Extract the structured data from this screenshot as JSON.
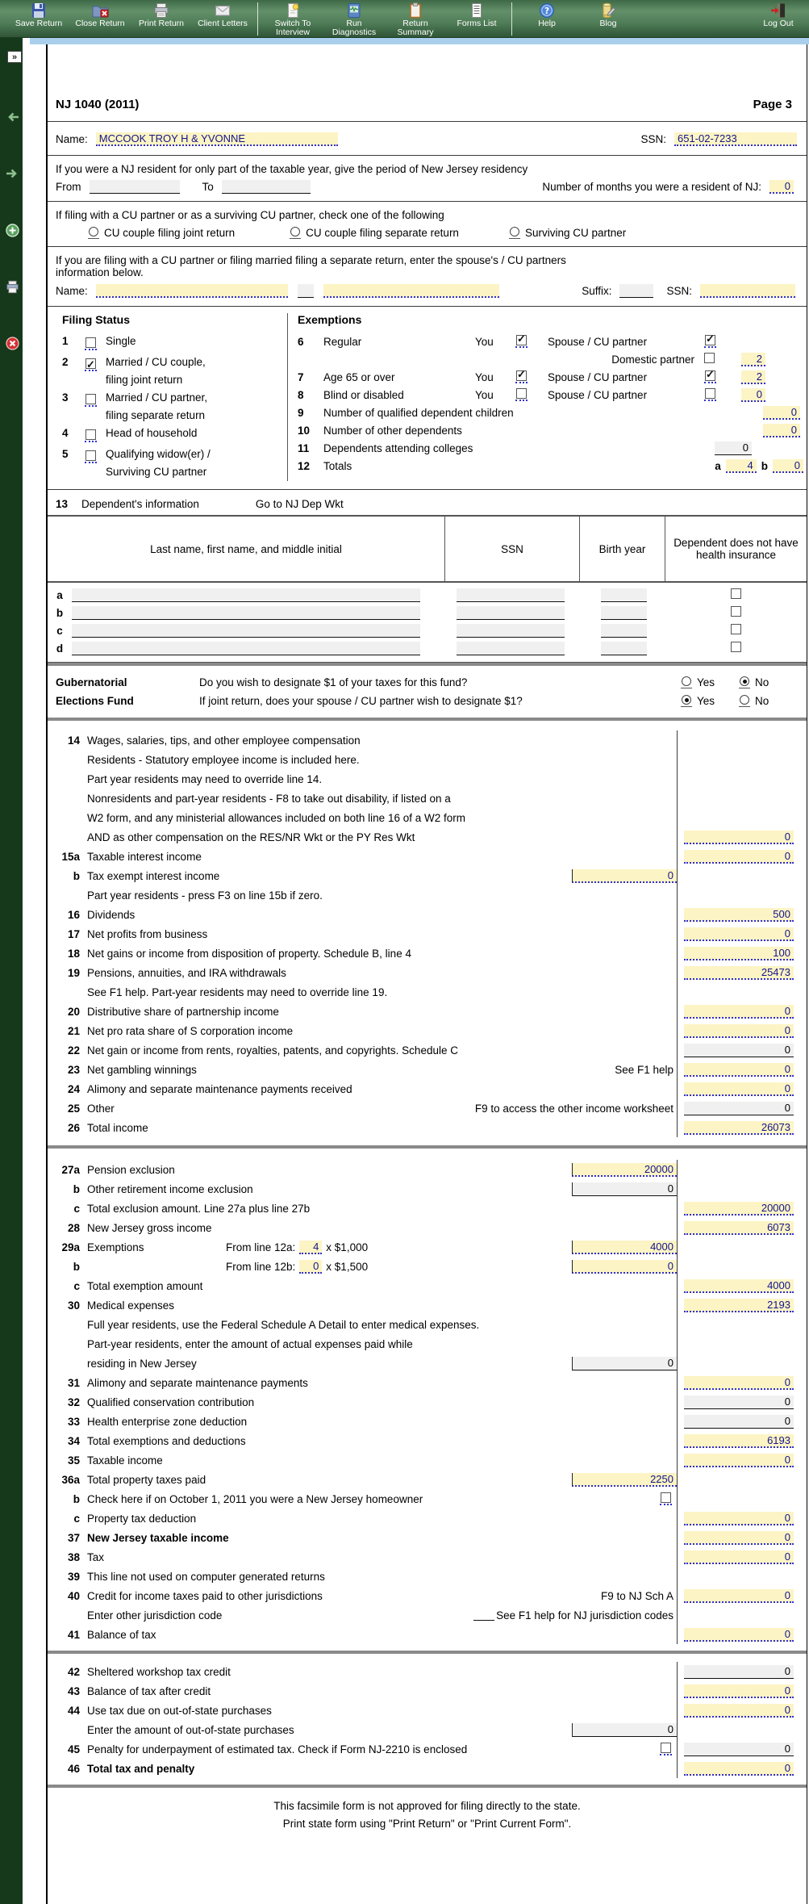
{
  "colors": {
    "toolbar_green": "#4f7d57",
    "sidebar_green": "#16391c",
    "field_yellow": "#fcf4c4",
    "field_gray": "#f0f0f0",
    "underline_blue": "#2f2fd4",
    "value_navy": "#14148c",
    "strip_blue": "#a9cfec"
  },
  "toolbar": {
    "buttons": [
      {
        "label": "Save Return",
        "icon": "save-icon"
      },
      {
        "label": "Close Return",
        "icon": "close-return-icon"
      },
      {
        "label": "Print Return",
        "icon": "print-icon"
      },
      {
        "label": "Client Letters",
        "icon": "envelope-icon"
      },
      {
        "sep": true
      },
      {
        "label": "Switch To Interview",
        "icon": "interview-icon"
      },
      {
        "label": "Run Diagnostics",
        "icon": "diagnostics-icon"
      },
      {
        "label": "Return Summary",
        "icon": "clipboard-icon"
      },
      {
        "label": "Forms List",
        "icon": "forms-list-icon"
      },
      {
        "sep": true
      },
      {
        "label": "Help",
        "icon": "help-icon"
      },
      {
        "label": "Blog",
        "icon": "blog-icon"
      }
    ],
    "logout_label": "Log Out"
  },
  "sidebar": {
    "expand_glyph": "»",
    "icons": [
      "back-arrow-icon",
      "forward-arrow-icon",
      "add-form-icon",
      "print-form-icon",
      "close-form-icon"
    ]
  },
  "header": {
    "title": "NJ 1040 (2011)",
    "page_label": "Page 3"
  },
  "name_row": {
    "name_label": "Name:",
    "name": "MCCOOK TROY H & YVONNE",
    "ssn_label": "SSN:",
    "ssn": "651-02-7233"
  },
  "residency": {
    "text": "If you were a NJ resident for only part of the taxable year,  give the period of New Jersey residency",
    "from_label": "From",
    "to_label": "To",
    "months_label": "Number of months you were a resident of NJ:",
    "months": "0"
  },
  "cu_filing": {
    "text": "If filing with a CU partner or as a surviving CU partner,  check one of the following",
    "selected": "",
    "options": [
      "CU couple filing joint return",
      "CU couple filing separate return",
      "Surviving CU partner"
    ]
  },
  "spouse": {
    "text1": "If you are filing with a CU partner or filing married filing a separate return,  enter the spouse's / CU partners",
    "text2": "information below.",
    "name_label": "Name:",
    "suffix_label": "Suffix:",
    "ssn_label": "SSN:"
  },
  "filing_status": {
    "title": "Filing Status",
    "items": [
      {
        "num": "1",
        "label": "Single",
        "label2": "",
        "checked": false
      },
      {
        "num": "2",
        "label": "Married / CU couple,",
        "label2": "filing joint return",
        "checked": true
      },
      {
        "num": "3",
        "label": "Married / CU partner,",
        "label2": "filing separate return",
        "checked": false
      },
      {
        "num": "4",
        "label": "Head of household",
        "label2": "",
        "checked": false
      },
      {
        "num": "5",
        "label": "Qualifying widow(er) /",
        "label2": "Surviving CU partner",
        "checked": false
      }
    ]
  },
  "exemptions": {
    "title": "Exemptions",
    "row6": {
      "num": "6",
      "label": "Regular",
      "you_label": "You",
      "you_checked": true,
      "spouse_label": "Spouse / CU partner",
      "spouse_checked": true
    },
    "row6b": {
      "label": "Domestic partner",
      "checked": false,
      "value": "2"
    },
    "row7": {
      "num": "7",
      "label": "Age 65 or over",
      "you_label": "You",
      "you_checked": true,
      "spouse_label": "Spouse / CU partner",
      "spouse_checked": true,
      "value": "2"
    },
    "row8": {
      "num": "8",
      "label": "Blind or disabled",
      "you_label": "You",
      "you_checked": false,
      "spouse_label": "Spouse / CU partner",
      "spouse_checked": false,
      "value": "0"
    },
    "row9": {
      "num": "9",
      "label": "Number of qualified dependent children",
      "value": "0"
    },
    "row10": {
      "num": "10",
      "label": "Number of other dependents",
      "value": "0"
    },
    "row11": {
      "num": "11",
      "label": "Dependents attending colleges",
      "value": "0"
    },
    "row12": {
      "num": "12",
      "label": "Totals",
      "a_label": "a",
      "a_value": "4",
      "b_label": "b",
      "b_value": "0"
    }
  },
  "dependents": {
    "line_num": "13",
    "label": "Dependent's information",
    "link": "Go to NJ Dep Wkt",
    "col_name": "Last name,  first name,  and middle initial",
    "col_ssn": "SSN",
    "col_birth": "Birth year",
    "col_health": "Dependent does not have health insurance",
    "rows": [
      "a",
      "b",
      "c",
      "d"
    ]
  },
  "gubernatorial": {
    "title1": "Gubernatorial",
    "title2": "Elections Fund",
    "q1": "Do you wish to designate $1 of your taxes for this fund?",
    "q2": "If joint return,  does your spouse / CU partner wish to designate $1?",
    "yes_label": "Yes",
    "no_label": "No",
    "q1_answer": "No",
    "q2_answer": "Yes"
  },
  "income": {
    "rows": [
      {
        "n": "14",
        "t": "Wages,  salaries,  tips,  and other employee compensation"
      },
      {
        "t": "Residents - Statutory employee income is included here."
      },
      {
        "t": "Part year residents may need to override line 14."
      },
      {
        "t": "Nonresidents and part-year residents - F8 to take out disability,  if listed on a"
      },
      {
        "t": "W2 form,  and any ministerial allowances included on both line 16 of a W2 form"
      },
      {
        "t": "AND as other compensation on the RES/NR Wkt or the PY Res Wkt",
        "rv": "0",
        "rt": "y"
      },
      {
        "n": "15a",
        "t": "Taxable interest income",
        "rv": "0",
        "rt": "y"
      },
      {
        "n": "b",
        "t": "Tax exempt interest income",
        "mv": "0",
        "mt": "y"
      },
      {
        "t": "Part year residents - press F3 on line 15b if zero."
      },
      {
        "n": "16",
        "t": "Dividends",
        "rv": "500",
        "rt": "y"
      },
      {
        "n": "17",
        "t": "Net profits from business",
        "rv": "0",
        "rt": "y"
      },
      {
        "n": "18",
        "t": "Net gains or income from disposition of property.   Schedule B,  line 4",
        "rv": "100",
        "rt": "y"
      },
      {
        "n": "19",
        "t": "Pensions,  annuities,  and IRA withdrawals",
        "rv": "25473",
        "rt": "y"
      },
      {
        "t": "See F1 help.   Part-year residents may need to override line 19."
      },
      {
        "n": "20",
        "t": "Distributive share of partnership income",
        "rv": "0",
        "rt": "y"
      },
      {
        "n": "21",
        "t": "Net pro rata share of S corporation income",
        "rv": "0",
        "rt": "y"
      },
      {
        "n": "22",
        "t": "Net gain or income from rents,  royalties,  patents,  and copyrights.   Schedule C",
        "rv": "0",
        "rt": "g"
      },
      {
        "n": "23",
        "t": "Net gambling winnings",
        "note": "See F1 help",
        "rv": "0",
        "rt": "y"
      },
      {
        "n": "24",
        "t": "Alimony and separate maintenance payments received",
        "rv": "0",
        "rt": "y"
      },
      {
        "n": "25",
        "t": "Other",
        "note": "F9 to access the other income worksheet",
        "rv": "0",
        "rt": "g"
      },
      {
        "n": "26",
        "t": "Total income",
        "rv": "26073",
        "rt": "y"
      }
    ]
  },
  "deductions": {
    "rows": [
      {
        "n": "27a",
        "t": "Pension exclusion",
        "mv": "20000",
        "mt": "y"
      },
      {
        "n": "b",
        "t": "Other retirement income exclusion",
        "mv": "0",
        "mt": "g"
      },
      {
        "n": "c",
        "t": "Total exclusion amount.  Line 27a plus line 27b",
        "rv": "20000",
        "rt": "y"
      },
      {
        "n": "28",
        "t": "New Jersey gross income",
        "rv": "6073",
        "rt": "y"
      },
      {
        "n": "29a",
        "t": "Exemptions",
        "inl_pre": "From line 12a:",
        "inl_val": "4",
        "inl_after": "x $1,000",
        "mv": "4000",
        "mt": "y"
      },
      {
        "n": "b",
        "t": "",
        "inl_pre": "From line 12b:",
        "inl_val": "0",
        "inl_after": "x $1,500",
        "mv": "0",
        "mt": "y"
      },
      {
        "n": "c",
        "t": "Total exemption amount",
        "rv": "4000",
        "rt": "y"
      },
      {
        "n": "30",
        "t": "Medical expenses",
        "rv": "2193",
        "rt": "y"
      },
      {
        "t": "Full year residents,  use the Federal Schedule A Detail to enter medical expenses."
      },
      {
        "t": "Part-year residents,  enter the amount of actual expenses paid while"
      },
      {
        "t": "residing in New Jersey",
        "mv": "0",
        "mt": "g"
      },
      {
        "n": "31",
        "t": "Alimony and separate maintenance payments",
        "rv": "0",
        "rt": "y"
      },
      {
        "n": "32",
        "t": "Qualified conservation contribution",
        "rv": "0",
        "rt": "g"
      },
      {
        "n": "33",
        "t": "Health enterprise zone deduction",
        "rv": "0",
        "rt": "g"
      },
      {
        "n": "34",
        "t": "Total exemptions and deductions",
        "rv": "6193",
        "rt": "y"
      },
      {
        "n": "35",
        "t": "Taxable income",
        "rv": "0",
        "rt": "y"
      },
      {
        "n": "36a",
        "t": "Total property taxes paid",
        "mv": "2250",
        "mt": "y"
      },
      {
        "n": "b",
        "t": "Check here if on October 1,  2011 you were a New Jersey homeowner",
        "cb": true
      },
      {
        "n": "c",
        "t": "Property tax deduction",
        "rv": "0",
        "rt": "y"
      },
      {
        "n": "37",
        "t": "New Jersey taxable income",
        "bold": true,
        "rv": "0",
        "rt": "y"
      },
      {
        "n": "38",
        "t": "Tax",
        "rv": "0",
        "rt": "y"
      },
      {
        "n": "39",
        "t": "This line not used on computer generated returns"
      },
      {
        "n": "40",
        "t": "Credit for income taxes paid to other jurisdictions",
        "note": "F9 to NJ Sch A",
        "rv": "0",
        "rt": "y"
      },
      {
        "t": "Enter other jurisdiction code",
        "jur": true,
        "note": "See F1 help for NJ jurisdiction codes"
      },
      {
        "n": "41",
        "t": "Balance of tax",
        "rv": "0",
        "rt": "y"
      }
    ]
  },
  "tax": {
    "rows": [
      {
        "n": "42",
        "t": "Sheltered workshop tax credit",
        "rv": "0",
        "rt": "g"
      },
      {
        "n": "43",
        "t": "Balance of tax after credit",
        "rv": "0",
        "rt": "y"
      },
      {
        "n": "44",
        "t": "Use tax due on out-of-state purchases",
        "rv": "0",
        "rt": "y"
      },
      {
        "t": "Enter the amount of out-of-state purchases",
        "mv": "0",
        "mt": "g"
      },
      {
        "n": "45",
        "t": "Penalty for underpayment of estimated tax.   Check if Form NJ-2210 is enclosed",
        "cb": true,
        "rv": "0",
        "rt": "g"
      },
      {
        "n": "46",
        "t": "Total tax and penalty",
        "bold": true,
        "rv": "0",
        "rt": "y"
      }
    ]
  },
  "footer": {
    "line1": "This facsimile form is not approved for filing directly to the state.",
    "line2": "Print state form using \"Print Return\" or \"Print Current Form\"."
  }
}
